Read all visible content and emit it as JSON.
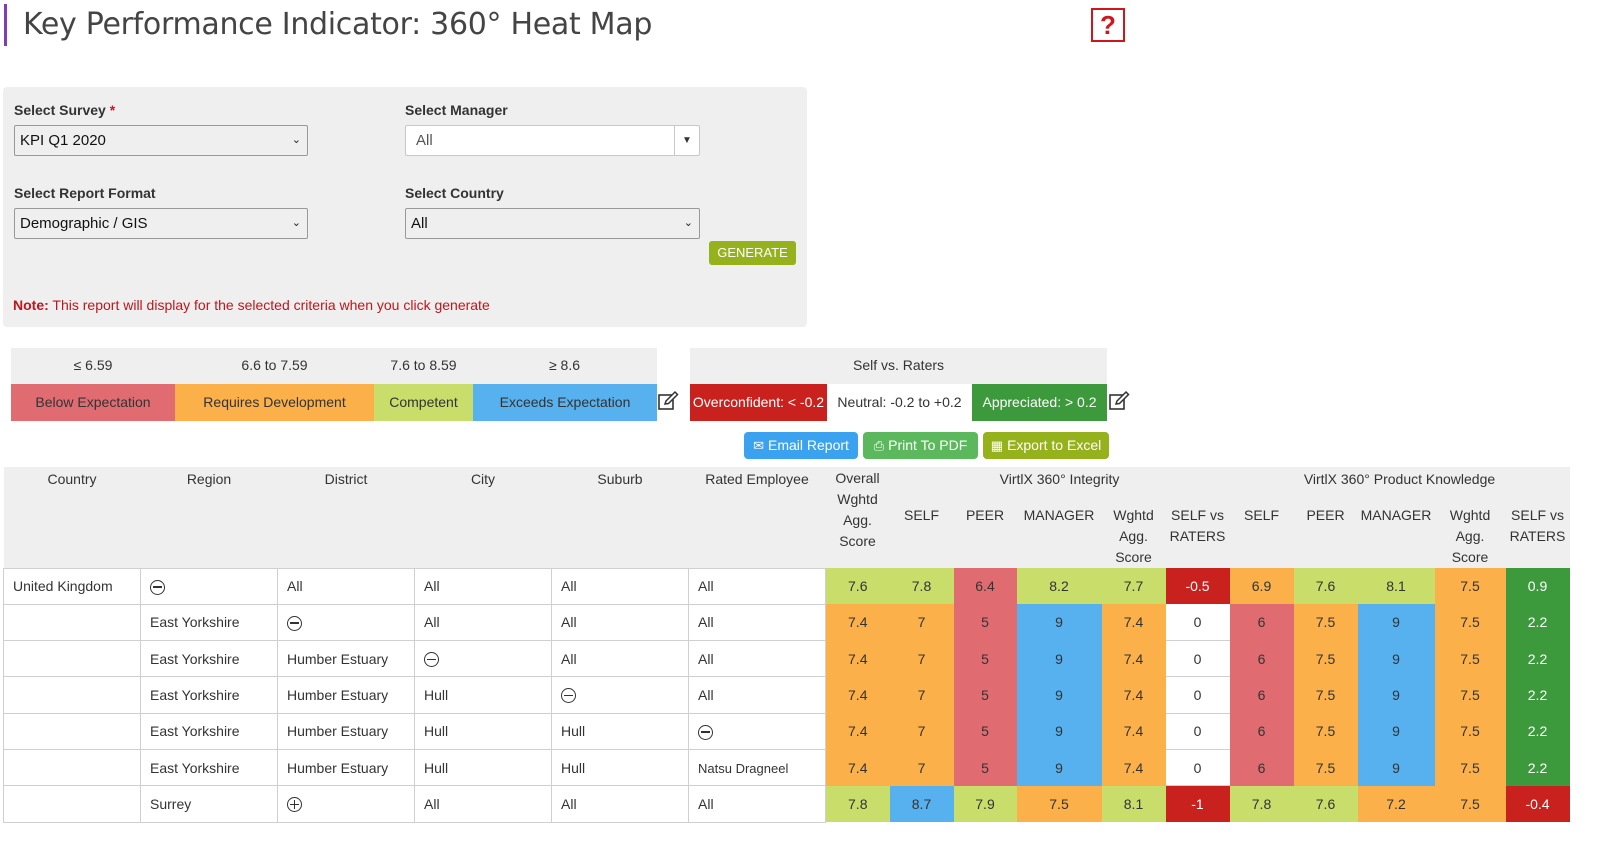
{
  "page": {
    "title": "Key Performance Indicator: 360° Heat Map",
    "help_icon": "help-question-icon"
  },
  "filters": {
    "survey": {
      "label": "Select Survey",
      "required_mark": "*",
      "value": "KPI Q1 2020"
    },
    "manager": {
      "label": "Select Manager",
      "value": "All"
    },
    "report_format": {
      "label": "Select Report Format",
      "value": "Demographic / GIS"
    },
    "country": {
      "label": "Select Country",
      "value": "All"
    },
    "generate_label": "GENERATE",
    "note_prefix": "Note:",
    "note_text": " This report will display for the selected criteria when you click generate"
  },
  "legend": {
    "ranges": [
      {
        "range": "≤ 6.59",
        "label": "Below Expectation",
        "color": "#e06c72"
      },
      {
        "range": "6.6 to 7.59",
        "label": "Requires Development",
        "color": "#fcb04a"
      },
      {
        "range": "7.6 to 8.59",
        "label": "Competent",
        "color": "#c9de6a"
      },
      {
        "range": "≥ 8.6",
        "label": "Exceeds Expectation",
        "color": "#57b1ef"
      }
    ],
    "self_vs_raters": {
      "title": "Self vs. Raters",
      "items": [
        {
          "label": "Overconfident: < -0.2",
          "color": "#c9211e"
        },
        {
          "label": "Neutral: -0.2 to +0.2",
          "color": "#ffffff"
        },
        {
          "label": "Appreciated: > 0.2",
          "color": "#3c9a3c"
        }
      ]
    }
  },
  "actions": {
    "email": {
      "label": "Email Report",
      "color": "#3aa2ef"
    },
    "pdf": {
      "label": "Print To PDF",
      "color": "#5cb85c"
    },
    "excel": {
      "label": "Export to Excel",
      "color": "#95b11b"
    }
  },
  "table": {
    "headers": {
      "country": "Country",
      "region": "Region",
      "district": "District",
      "city": "City",
      "suburb": "Suburb",
      "rated_employee": "Rated Employee",
      "overall": "Overall Wghtd Agg. Score",
      "group1": "VirtlX 360° Integrity",
      "group2": "VirtlX 360° Product Knowledge",
      "self": "SELF",
      "peer": "PEER",
      "manager": "MANAGER",
      "wghtd": "Wghtd Agg. Score",
      "self_vs_raters": "SELF vs RATERS"
    },
    "rows": [
      {
        "country": "United Kingdom",
        "region": "",
        "district": "All",
        "city": "All",
        "suburb": "All",
        "employee": "All",
        "expander": "region",
        "expander_type": "minus",
        "scores": [
          "7.6",
          "7.8",
          "6.4",
          "8.2",
          "7.7",
          "-0.5",
          "6.9",
          "7.6",
          "8.1",
          "7.5",
          "0.9"
        ]
      },
      {
        "country": "",
        "region": "East Yorkshire",
        "district": "",
        "city": "All",
        "suburb": "All",
        "employee": "All",
        "expander": "district",
        "expander_type": "minus",
        "scores": [
          "7.4",
          "7",
          "5",
          "9",
          "7.4",
          "0",
          "6",
          "7.5",
          "9",
          "7.5",
          "2.2"
        ]
      },
      {
        "country": "",
        "region": "East Yorkshire",
        "district": "Humber Estuary",
        "city": "",
        "suburb": "All",
        "employee": "All",
        "expander": "city",
        "expander_type": "minus",
        "scores": [
          "7.4",
          "7",
          "5",
          "9",
          "7.4",
          "0",
          "6",
          "7.5",
          "9",
          "7.5",
          "2.2"
        ]
      },
      {
        "country": "",
        "region": "East Yorkshire",
        "district": "Humber Estuary",
        "city": "Hull",
        "suburb": "",
        "employee": "All",
        "expander": "suburb",
        "expander_type": "minus",
        "scores": [
          "7.4",
          "7",
          "5",
          "9",
          "7.4",
          "0",
          "6",
          "7.5",
          "9",
          "7.5",
          "2.2"
        ]
      },
      {
        "country": "",
        "region": "East Yorkshire",
        "district": "Humber Estuary",
        "city": "Hull",
        "suburb": "Hull",
        "employee": "",
        "expander": "employee",
        "expander_type": "minus",
        "scores": [
          "7.4",
          "7",
          "5",
          "9",
          "7.4",
          "0",
          "6",
          "7.5",
          "9",
          "7.5",
          "2.2"
        ]
      },
      {
        "country": "",
        "region": "East Yorkshire",
        "district": "Humber Estuary",
        "city": "Hull",
        "suburb": "Hull",
        "employee": "Natsu Dragneel",
        "expander": "",
        "expander_type": "",
        "scores": [
          "7.4",
          "7",
          "5",
          "9",
          "7.4",
          "0",
          "6",
          "7.5",
          "9",
          "7.5",
          "2.2"
        ]
      },
      {
        "country": "",
        "region": "Surrey",
        "district": "",
        "city": "All",
        "suburb": "All",
        "employee": "All",
        "expander": "district",
        "expander_type": "plus",
        "scores": [
          "7.8",
          "8.7",
          "7.9",
          "7.5",
          "8.1",
          "-1",
          "7.8",
          "7.6",
          "7.2",
          "7.5",
          "-0.4"
        ]
      }
    ]
  }
}
